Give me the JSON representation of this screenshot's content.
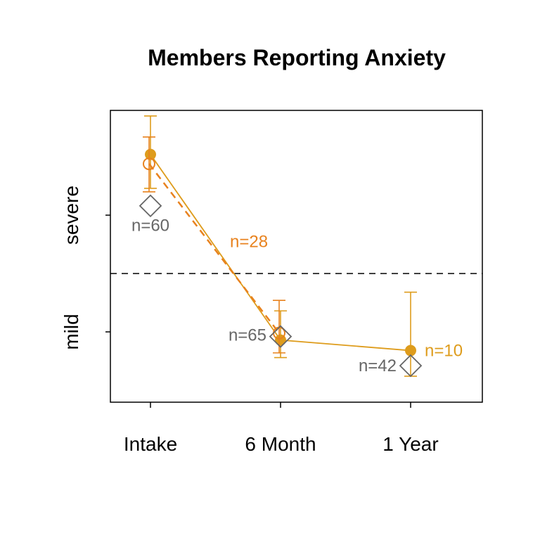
{
  "chart_data": {
    "type": "line",
    "title": "Members Reporting Anxiety",
    "xlabel": "",
    "ylabel": "",
    "categories": [
      "Intake",
      "6 Month",
      "1 Year"
    ],
    "y_tick_labels": [
      "mild",
      "severe"
    ],
    "y_tick_values": [
      1,
      2
    ],
    "threshold": 1.5,
    "ylim": [
      0.62,
      3.1
    ],
    "grid": false,
    "series": [
      {
        "color": "#DE9C1C",
        "marker": "filled-circle",
        "line": "solid",
        "values": [
          2.52,
          0.93,
          0.84
        ],
        "err_low": [
          2.23,
          0.78,
          0.62
        ],
        "err_high": [
          2.85,
          1.18,
          1.34
        ],
        "n_labels": [
          "",
          "",
          "n=10"
        ]
      },
      {
        "color": "#E8821E",
        "marker": "open-circle",
        "line": "dashed",
        "values": [
          2.44,
          0.99,
          null
        ],
        "err_low": [
          2.2,
          0.82,
          null
        ],
        "err_high": [
          2.67,
          1.27,
          null
        ],
        "n_labels": [
          "",
          "n=28",
          ""
        ]
      },
      {
        "color": "#666666",
        "marker": "open-diamond",
        "line": "none",
        "values": [
          2.08,
          0.96,
          0.71
        ],
        "err_low": [
          null,
          null,
          null
        ],
        "err_high": [
          null,
          null,
          null
        ],
        "n_labels": [
          "n=60",
          "n=65",
          "n=42"
        ]
      }
    ]
  }
}
